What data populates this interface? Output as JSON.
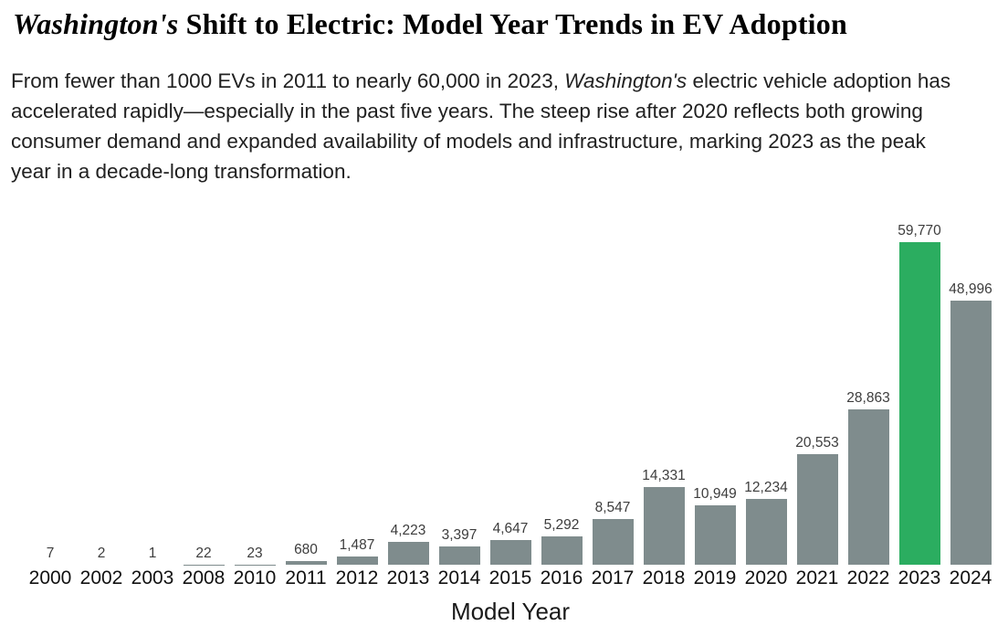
{
  "page": {
    "title": {
      "italic": "Washington's",
      "rest": " Shift to Electric: Model Year Trends in EV Adoption"
    },
    "intro": {
      "before": "From fewer than 1000 EVs in 2011 to nearly 60,000 in 2023, ",
      "italic": "Washington's",
      "after": " electric vehicle adoption has accelerated rapidly—especially in the past five years. The steep rise after 2020 reflects both growing consumer demand and expanded availability of models and infrastructure, marking 2023 as the peak year in a decade-long transformation."
    }
  },
  "chart_data": {
    "type": "bar",
    "categories": [
      "2000",
      "2002",
      "2003",
      "2008",
      "2010",
      "2011",
      "2012",
      "2013",
      "2014",
      "2015",
      "2016",
      "2017",
      "2018",
      "2019",
      "2020",
      "2021",
      "2022",
      "2023",
      "2024"
    ],
    "values": [
      7,
      2,
      1,
      22,
      23,
      680,
      1487,
      4223,
      3397,
      4647,
      5292,
      8547,
      14331,
      10949,
      12234,
      20553,
      28863,
      59770,
      48996
    ],
    "value_labels": [
      "7",
      "2",
      "1",
      "22",
      "23",
      "680",
      "1,487",
      "4,223",
      "3,397",
      "4,647",
      "5,292",
      "8,547",
      "14,331",
      "10,949",
      "12,234",
      "20,553",
      "28,863",
      "59,770",
      "48,996"
    ],
    "title": "",
    "xlabel": "Model Year",
    "ylabel": "",
    "ylim": [
      0,
      60000
    ],
    "grid": false,
    "legend": false,
    "bar_color": "#7F8C8D",
    "highlight": {
      "category": "2023",
      "color": "#2BAD60"
    }
  }
}
